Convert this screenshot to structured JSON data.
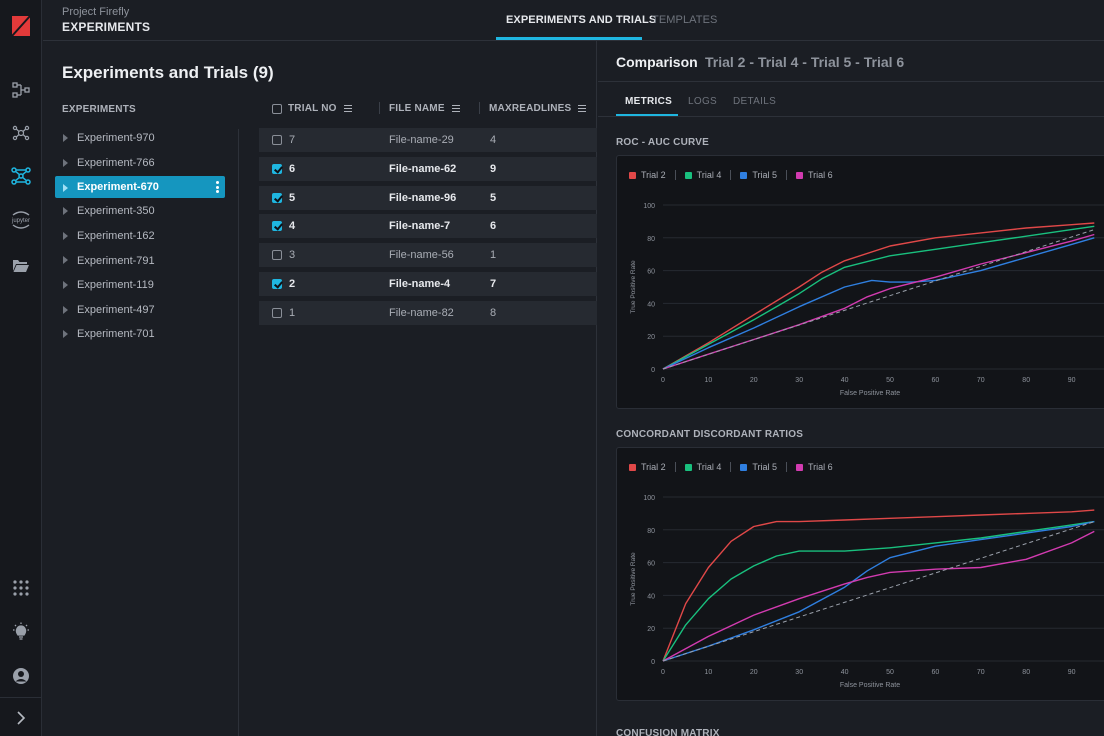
{
  "header": {
    "project": "Project Firefly",
    "section": "EXPERIMENTS",
    "tabs": [
      {
        "label": "EXPERIMENTS AND TRIALS",
        "active": true
      },
      {
        "label": "TEMPLATES",
        "active": false
      }
    ]
  },
  "rail": {
    "icons": [
      "logo-icon",
      "pipeline-icon",
      "network-icon",
      "experiments-icon",
      "jupyter-icon",
      "folder-icon",
      "apps-grid-icon",
      "lightbulb-icon",
      "user-icon",
      "expand-chevron-icon"
    ],
    "jupyter_label": "jupyter"
  },
  "middle": {
    "title": "Experiments and Trials (9)",
    "experiments_heading": "EXPERIMENTS",
    "experiments": [
      "Experiment-970",
      "Experiment-766",
      "Experiment-670",
      "Experiment-350",
      "Experiment-162",
      "Experiment-791",
      "Experiment-119",
      "Experiment-497",
      "Experiment-701"
    ],
    "selected_experiment": "Experiment-670",
    "table": {
      "columns": [
        "TRIAL NO",
        "FILE NAME",
        "MAXREADLINES"
      ],
      "rows": [
        {
          "trial": "7",
          "file": "File-name-29",
          "max": "4",
          "checked": false
        },
        {
          "trial": "6",
          "file": "File-name-62",
          "max": "9",
          "checked": true
        },
        {
          "trial": "5",
          "file": "File-name-96",
          "max": "5",
          "checked": true
        },
        {
          "trial": "4",
          "file": "File-name-7",
          "max": "6",
          "checked": true
        },
        {
          "trial": "3",
          "file": "File-name-56",
          "max": "1",
          "checked": false
        },
        {
          "trial": "2",
          "file": "File-name-4",
          "max": "7",
          "checked": true
        },
        {
          "trial": "1",
          "file": "File-name-82",
          "max": "8",
          "checked": false
        }
      ]
    }
  },
  "comparison": {
    "title": "Comparison",
    "trials": "Trial 2 - Trial 4 - Trial 5 - Trial 6",
    "tabs": [
      "METRICS",
      "LOGS",
      "DETAILS"
    ],
    "active_tab": "METRICS",
    "next_section": "CONFUSION MATRIX"
  },
  "colors": {
    "accent": "#1fb6e0",
    "trial2": "#e04848",
    "trial4": "#19c07e",
    "trial5": "#2f7fe0",
    "trial6": "#d23bb0"
  },
  "chart_data": [
    {
      "type": "line",
      "title": "ROC - AUC CURVE",
      "xlabel": "False Positive Rate",
      "ylabel": "True Positive Rate",
      "xlim": [
        0,
        100
      ],
      "ylim": [
        0,
        100
      ],
      "xticks": [
        0,
        10,
        20,
        30,
        40,
        50,
        60,
        70,
        80,
        90
      ],
      "yticks": [
        0,
        20,
        40,
        60,
        80,
        100
      ],
      "grid": true,
      "legend": "top-left",
      "series": [
        {
          "name": "Trial 2",
          "x": [
            0,
            10,
            20,
            30,
            35,
            40,
            50,
            60,
            70,
            80,
            90,
            95
          ],
          "y": [
            0,
            16,
            33,
            50,
            59,
            66,
            75,
            80,
            83,
            86,
            88,
            89
          ]
        },
        {
          "name": "Trial 4",
          "x": [
            0,
            10,
            20,
            30,
            35,
            40,
            50,
            60,
            70,
            80,
            90,
            95
          ],
          "y": [
            0,
            15,
            30,
            46,
            55,
            62,
            69,
            73,
            77,
            81,
            85,
            87
          ]
        },
        {
          "name": "Trial 5",
          "x": [
            0,
            10,
            20,
            30,
            40,
            46,
            50,
            55,
            60,
            70,
            80,
            90,
            95
          ],
          "y": [
            0,
            13,
            25,
            38,
            50,
            54,
            53,
            53,
            54,
            60,
            68,
            76,
            80
          ]
        },
        {
          "name": "Trial 6",
          "x": [
            0,
            10,
            20,
            30,
            40,
            45,
            50,
            60,
            70,
            80,
            90,
            95
          ],
          "y": [
            0,
            9,
            18,
            27,
            37,
            44,
            49,
            56,
            64,
            71,
            78,
            82
          ]
        },
        {
          "name": "Baseline",
          "x": [
            0,
            95
          ],
          "y": [
            0,
            85
          ],
          "dashed": true
        }
      ]
    },
    {
      "type": "line",
      "title": "CONCORDANT DISCORDANT RATIOS",
      "xlabel": "False Positive Rate",
      "ylabel": "True Positive Rate",
      "xlim": [
        0,
        100
      ],
      "ylim": [
        0,
        100
      ],
      "xticks": [
        0,
        10,
        20,
        30,
        40,
        50,
        60,
        70,
        80,
        90
      ],
      "yticks": [
        0,
        20,
        40,
        60,
        80,
        100
      ],
      "grid": true,
      "legend": "top-left",
      "series": [
        {
          "name": "Trial 2",
          "x": [
            0,
            5,
            10,
            15,
            20,
            25,
            30,
            40,
            50,
            60,
            70,
            80,
            90,
            95
          ],
          "y": [
            0,
            35,
            57,
            73,
            82,
            85,
            85,
            86,
            87,
            88,
            89,
            90,
            91,
            92
          ]
        },
        {
          "name": "Trial 4",
          "x": [
            0,
            5,
            10,
            15,
            20,
            25,
            30,
            40,
            50,
            60,
            70,
            80,
            90,
            95
          ],
          "y": [
            0,
            22,
            38,
            50,
            58,
            64,
            67,
            67,
            69,
            72,
            75,
            79,
            83,
            85
          ]
        },
        {
          "name": "Trial 5",
          "x": [
            0,
            10,
            20,
            30,
            40,
            45,
            50,
            60,
            70,
            80,
            90,
            95
          ],
          "y": [
            0,
            9,
            19,
            30,
            45,
            55,
            63,
            70,
            74,
            78,
            82,
            85
          ]
        },
        {
          "name": "Trial 6",
          "x": [
            0,
            10,
            20,
            30,
            40,
            45,
            50,
            60,
            70,
            80,
            90,
            95
          ],
          "y": [
            0,
            15,
            28,
            38,
            47,
            51,
            54,
            56,
            57,
            62,
            72,
            79
          ]
        },
        {
          "name": "Baseline",
          "x": [
            0,
            95
          ],
          "y": [
            0,
            85
          ],
          "dashed": true
        }
      ]
    }
  ]
}
